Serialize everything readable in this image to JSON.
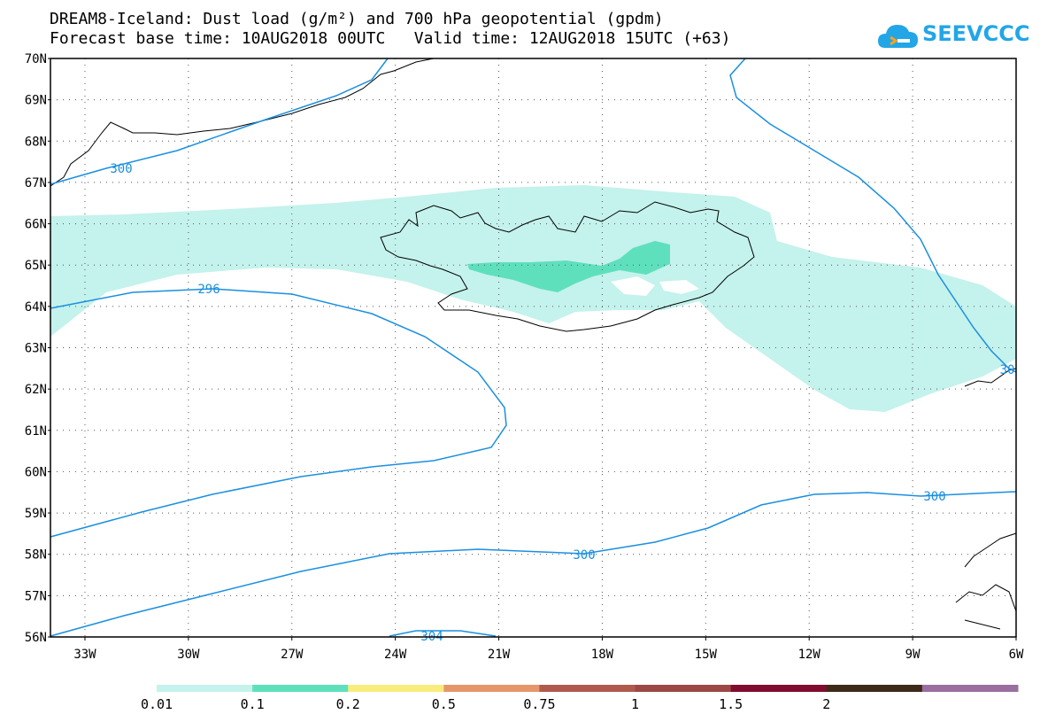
{
  "title": {
    "line1": "DREAM8-Iceland: Dust load (g/m²) and 700 hPa geopotential (gpdm)",
    "line2": "Forecast base time: 10AUG2018 00UTC   Valid time: 12AUG2018 15UTC (+63)"
  },
  "logo": {
    "text": "SEEVCCC",
    "icon": "cloud-logo-icon",
    "color": "#22a6e6"
  },
  "axes": {
    "lat_labels": [
      "70N",
      "69N",
      "68N",
      "67N",
      "66N",
      "65N",
      "64N",
      "63N",
      "62N",
      "61N",
      "60N",
      "59N",
      "58N",
      "57N",
      "56N"
    ],
    "lon_labels": [
      "33W",
      "30W",
      "27W",
      "24W",
      "21W",
      "18W",
      "15W",
      "12W",
      "9W",
      "6W"
    ]
  },
  "contours": {
    "color": "#1a8fe0",
    "labels": [
      "300",
      "296",
      "300",
      "300",
      "304",
      "30"
    ]
  },
  "dust_colors": {
    "light": "#c4f2ec",
    "medium": "#5fe0bd"
  },
  "colorbar": {
    "segments": [
      {
        "color": "#c4f2ec"
      },
      {
        "color": "#5fe0bd"
      },
      {
        "color": "#f9ec7c"
      },
      {
        "color": "#e7966b"
      },
      {
        "color": "#b05a4f"
      },
      {
        "color": "#9c4845"
      },
      {
        "color": "#800d30"
      },
      {
        "color": "#3e2a18"
      },
      {
        "color": "#9a6fa0"
      }
    ],
    "labels": [
      "0.01",
      "0.1",
      "0.2",
      "0.5",
      "0.75",
      "1",
      "1.5",
      "2"
    ]
  }
}
